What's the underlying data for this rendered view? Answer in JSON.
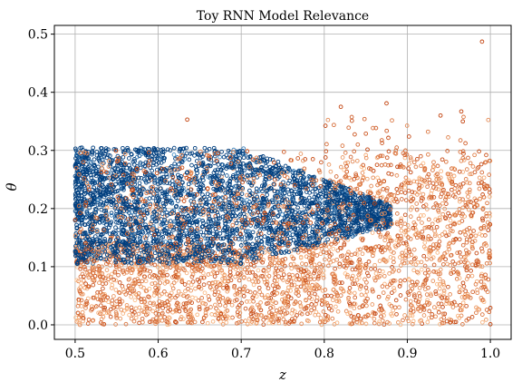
{
  "chart_data": {
    "type": "scatter",
    "title": "Toy RNN Model Relevance",
    "xlabel": "z",
    "ylabel": "θ",
    "xlim": [
      0.475,
      1.025
    ],
    "ylim": [
      -0.025,
      0.515
    ],
    "xticks": [
      "0.5",
      "0.6",
      "0.7",
      "0.8",
      "0.9",
      "1.0"
    ],
    "yticks": [
      "0.0",
      "0.1",
      "0.2",
      "0.3",
      "0.4",
      "0.5"
    ],
    "grid": true,
    "legend": "none",
    "marker": "open-circle",
    "series": [
      {
        "color_dark": "#003f7f",
        "color_light": "#4a90c8",
        "region": {
          "z": [
            0.5,
            0.88
          ],
          "theta": [
            0.1,
            0.31
          ]
        },
        "description_values": "dense band, upper edge decreasing after z≈0.7"
      },
      {
        "color_dark": "#c2410c",
        "color_light": "#fdbf8a",
        "region": {
          "z": [
            0.5,
            1.0
          ],
          "theta": [
            0.0,
            0.3
          ]
        },
        "outliers": [
          [
            0.635,
            0.353
          ],
          [
            0.82,
            0.375
          ],
          [
            0.875,
            0.381
          ],
          [
            0.99,
            0.487
          ],
          [
            0.94,
            0.36
          ],
          [
            0.965,
            0.367
          ]
        ]
      }
    ]
  }
}
